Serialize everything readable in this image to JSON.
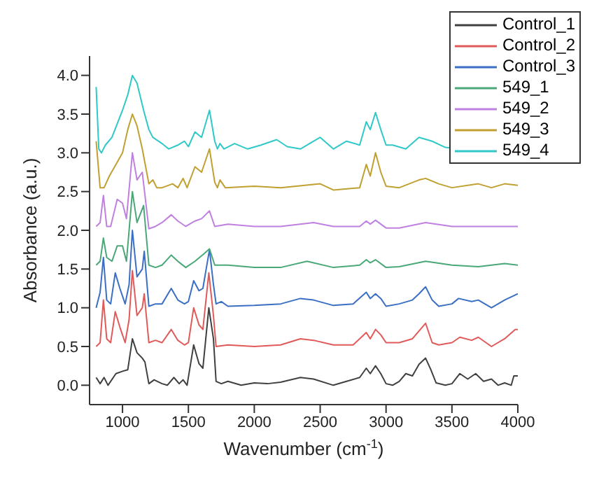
{
  "chart_data": {
    "type": "line",
    "xlabel": "Wavenumber (cm$^{-1}$)",
    "ylabel": "Absorbance (a.u.)",
    "xlim": [
      750,
      4000
    ],
    "xticks": [
      1000,
      1500,
      2000,
      2500,
      3000,
      3500,
      4000
    ],
    "ylim": [
      -0.25,
      4.25
    ],
    "yticks": [
      {
        "value": 0,
        "label": "0.0"
      },
      0.5,
      {
        "value": 1,
        "label": "1.0"
      },
      1.5,
      {
        "value": 2,
        "label": "2.0"
      },
      2.5,
      {
        "value": 3,
        "label": "3.0"
      },
      3.5,
      {
        "value": 4,
        "label": "4.0"
      }
    ],
    "legend": "top right",
    "marker": "none",
    "line_style": "solid",
    "series": [
      {
        "name": "Control_1",
        "color": "#404040",
        "x": [
          800,
          830,
          860,
          890,
          950,
          1000,
          1040,
          1075,
          1110,
          1150,
          1170,
          1200,
          1240,
          1300,
          1340,
          1390,
          1430,
          1460,
          1490,
          1540,
          1580,
          1610,
          1655,
          1690,
          1710,
          1750,
          1800,
          1900,
          2000,
          2100,
          2200,
          2350,
          2450,
          2600,
          2700,
          2800,
          2850,
          2880,
          2920,
          2960,
          3000,
          3050,
          3100,
          3150,
          3200,
          3250,
          3300,
          3340,
          3380,
          3450,
          3500,
          3560,
          3620,
          3680,
          3740,
          3800,
          3850,
          3900,
          3950,
          3970,
          4000
        ],
        "values": [
          0.1,
          0.02,
          0.1,
          0.0,
          0.15,
          0.18,
          0.2,
          0.6,
          0.42,
          0.35,
          0.3,
          0.02,
          0.07,
          0.02,
          0.0,
          0.1,
          0.02,
          0.07,
          0.0,
          0.52,
          0.28,
          0.22,
          1.0,
          0.6,
          0.05,
          0.02,
          0.05,
          0.0,
          0.03,
          0.02,
          0.04,
          0.1,
          0.08,
          0.0,
          0.05,
          0.1,
          0.22,
          0.15,
          0.25,
          0.15,
          0.02,
          0.0,
          0.05,
          0.15,
          0.12,
          0.27,
          0.35,
          0.2,
          0.03,
          0.0,
          0.02,
          0.15,
          0.08,
          0.15,
          0.05,
          0.08,
          0.0,
          0.03,
          0.0,
          0.12,
          0.12
        ]
      },
      {
        "name": "Control_2",
        "color": "#e05a5a",
        "x": [
          800,
          830,
          855,
          880,
          910,
          945,
          980,
          1020,
          1050,
          1075,
          1110,
          1150,
          1165,
          1200,
          1250,
          1300,
          1370,
          1420,
          1470,
          1500,
          1540,
          1580,
          1610,
          1655,
          1690,
          1710,
          1800,
          2000,
          2200,
          2350,
          2450,
          2600,
          2750,
          2850,
          2880,
          2920,
          2960,
          3000,
          3100,
          3200,
          3250,
          3300,
          3350,
          3400,
          3500,
          3560,
          3650,
          3700,
          3800,
          3900,
          3980,
          4000
        ],
        "values": [
          0.5,
          0.55,
          1.1,
          0.6,
          0.55,
          0.95,
          0.75,
          0.55,
          0.85,
          1.48,
          0.9,
          1.0,
          1.18,
          0.55,
          0.58,
          0.55,
          0.72,
          0.58,
          0.52,
          0.55,
          1.0,
          0.78,
          0.72,
          1.45,
          0.9,
          0.5,
          0.52,
          0.5,
          0.52,
          0.6,
          0.58,
          0.52,
          0.52,
          0.68,
          0.6,
          0.72,
          0.65,
          0.55,
          0.55,
          0.6,
          0.7,
          0.8,
          0.55,
          0.52,
          0.55,
          0.62,
          0.58,
          0.62,
          0.5,
          0.6,
          0.72,
          0.72
        ]
      },
      {
        "name": "Control_3",
        "color": "#3a6fc4",
        "x": [
          800,
          830,
          855,
          880,
          910,
          945,
          980,
          1020,
          1050,
          1075,
          1110,
          1150,
          1165,
          1200,
          1250,
          1300,
          1370,
          1420,
          1470,
          1500,
          1540,
          1580,
          1610,
          1660,
          1690,
          1710,
          1750,
          1800,
          2000,
          2200,
          2350,
          2450,
          2600,
          2750,
          2850,
          2880,
          2920,
          2960,
          3000,
          3100,
          3200,
          3250,
          3300,
          3350,
          3400,
          3500,
          3550,
          3650,
          3700,
          3800,
          3900,
          4000
        ],
        "values": [
          1.0,
          1.2,
          1.65,
          1.1,
          1.05,
          1.45,
          1.25,
          1.05,
          1.3,
          2.0,
          1.4,
          1.5,
          1.73,
          1.02,
          1.05,
          1.05,
          1.25,
          1.1,
          1.05,
          1.08,
          1.35,
          1.22,
          1.25,
          1.75,
          1.3,
          1.05,
          1.08,
          1.02,
          1.03,
          1.05,
          1.12,
          1.1,
          1.03,
          1.05,
          1.2,
          1.12,
          1.18,
          1.12,
          1.02,
          1.05,
          1.1,
          1.18,
          1.27,
          1.1,
          1.02,
          1.05,
          1.12,
          1.08,
          1.1,
          1.0,
          1.1,
          1.18
        ]
      },
      {
        "name": "549_1",
        "color": "#4aa878",
        "x": [
          800,
          830,
          855,
          880,
          920,
          960,
          1000,
          1030,
          1060,
          1075,
          1110,
          1160,
          1200,
          1250,
          1300,
          1370,
          1420,
          1480,
          1550,
          1620,
          1660,
          1700,
          1800,
          2000,
          2200,
          2400,
          2600,
          2800,
          2850,
          2880,
          2920,
          3000,
          3100,
          3300,
          3500,
          3700,
          3900,
          4000
        ],
        "values": [
          1.55,
          1.6,
          1.9,
          1.65,
          1.6,
          1.8,
          1.8,
          1.6,
          2.2,
          2.5,
          2.1,
          2.32,
          1.55,
          1.52,
          1.55,
          1.68,
          1.6,
          1.52,
          1.6,
          1.7,
          1.76,
          1.55,
          1.55,
          1.52,
          1.52,
          1.6,
          1.52,
          1.55,
          1.62,
          1.58,
          1.62,
          1.52,
          1.53,
          1.6,
          1.55,
          1.53,
          1.57,
          1.55
        ]
      },
      {
        "name": "549_2",
        "color": "#c080e0",
        "x": [
          800,
          830,
          855,
          880,
          910,
          960,
          1000,
          1030,
          1075,
          1110,
          1150,
          1200,
          1250,
          1300,
          1370,
          1420,
          1480,
          1550,
          1600,
          1660,
          1700,
          1800,
          2000,
          2200,
          2450,
          2600,
          2800,
          2850,
          2880,
          2920,
          3000,
          3100,
          3300,
          3500,
          3700,
          3900,
          4000
        ],
        "values": [
          2.05,
          2.1,
          2.45,
          2.05,
          2.05,
          2.4,
          2.35,
          2.15,
          3.0,
          2.65,
          2.75,
          2.02,
          2.05,
          2.1,
          2.2,
          2.12,
          2.05,
          2.12,
          2.15,
          2.25,
          2.05,
          2.08,
          2.05,
          2.05,
          2.1,
          2.05,
          2.05,
          2.12,
          2.08,
          2.13,
          2.03,
          2.03,
          2.1,
          2.05,
          2.05,
          2.05,
          2.05
        ]
      },
      {
        "name": "549_3",
        "color": "#c0a030",
        "x": [
          800,
          830,
          860,
          900,
          950,
          1000,
          1040,
          1075,
          1110,
          1150,
          1200,
          1230,
          1260,
          1300,
          1380,
          1420,
          1460,
          1490,
          1550,
          1600,
          1660,
          1700,
          1720,
          1740,
          1780,
          2000,
          2200,
          2500,
          2600,
          2800,
          2850,
          2880,
          2920,
          2960,
          3000,
          3100,
          3250,
          3300,
          3400,
          3500,
          3700,
          3800,
          3900,
          4000
        ],
        "values": [
          3.15,
          2.55,
          2.55,
          2.7,
          2.85,
          3.0,
          3.3,
          3.5,
          3.35,
          3.05,
          2.6,
          2.65,
          2.55,
          2.55,
          2.6,
          2.55,
          2.67,
          2.55,
          2.82,
          2.75,
          3.05,
          2.62,
          2.55,
          2.65,
          2.55,
          2.57,
          2.55,
          2.6,
          2.52,
          2.55,
          2.85,
          2.7,
          3.0,
          2.75,
          2.57,
          2.55,
          2.65,
          2.67,
          2.6,
          2.55,
          2.6,
          2.55,
          2.6,
          2.58
        ]
      },
      {
        "name": "549_4",
        "color": "#30c8c8",
        "x": [
          800,
          820,
          840,
          870,
          920,
          1000,
          1040,
          1075,
          1110,
          1160,
          1200,
          1230,
          1300,
          1350,
          1420,
          1470,
          1500,
          1550,
          1600,
          1660,
          1700,
          1720,
          1740,
          1770,
          1850,
          1950,
          2050,
          2170,
          2250,
          2350,
          2500,
          2600,
          2700,
          2800,
          2850,
          2880,
          2920,
          2960,
          3000,
          3050,
          3150,
          3250,
          3350,
          3450,
          3550
        ],
        "values": [
          3.85,
          3.05,
          3.0,
          3.1,
          3.2,
          3.55,
          3.75,
          4.0,
          3.9,
          3.55,
          3.3,
          3.2,
          3.12,
          3.05,
          3.1,
          3.15,
          3.08,
          3.27,
          3.2,
          3.55,
          3.15,
          3.05,
          3.12,
          3.05,
          3.12,
          3.05,
          3.1,
          3.17,
          3.08,
          3.05,
          3.2,
          3.05,
          3.15,
          3.1,
          3.4,
          3.3,
          3.52,
          3.3,
          3.1,
          3.1,
          3.05,
          3.2,
          3.15,
          3.07,
          3.05
        ]
      }
    ]
  }
}
